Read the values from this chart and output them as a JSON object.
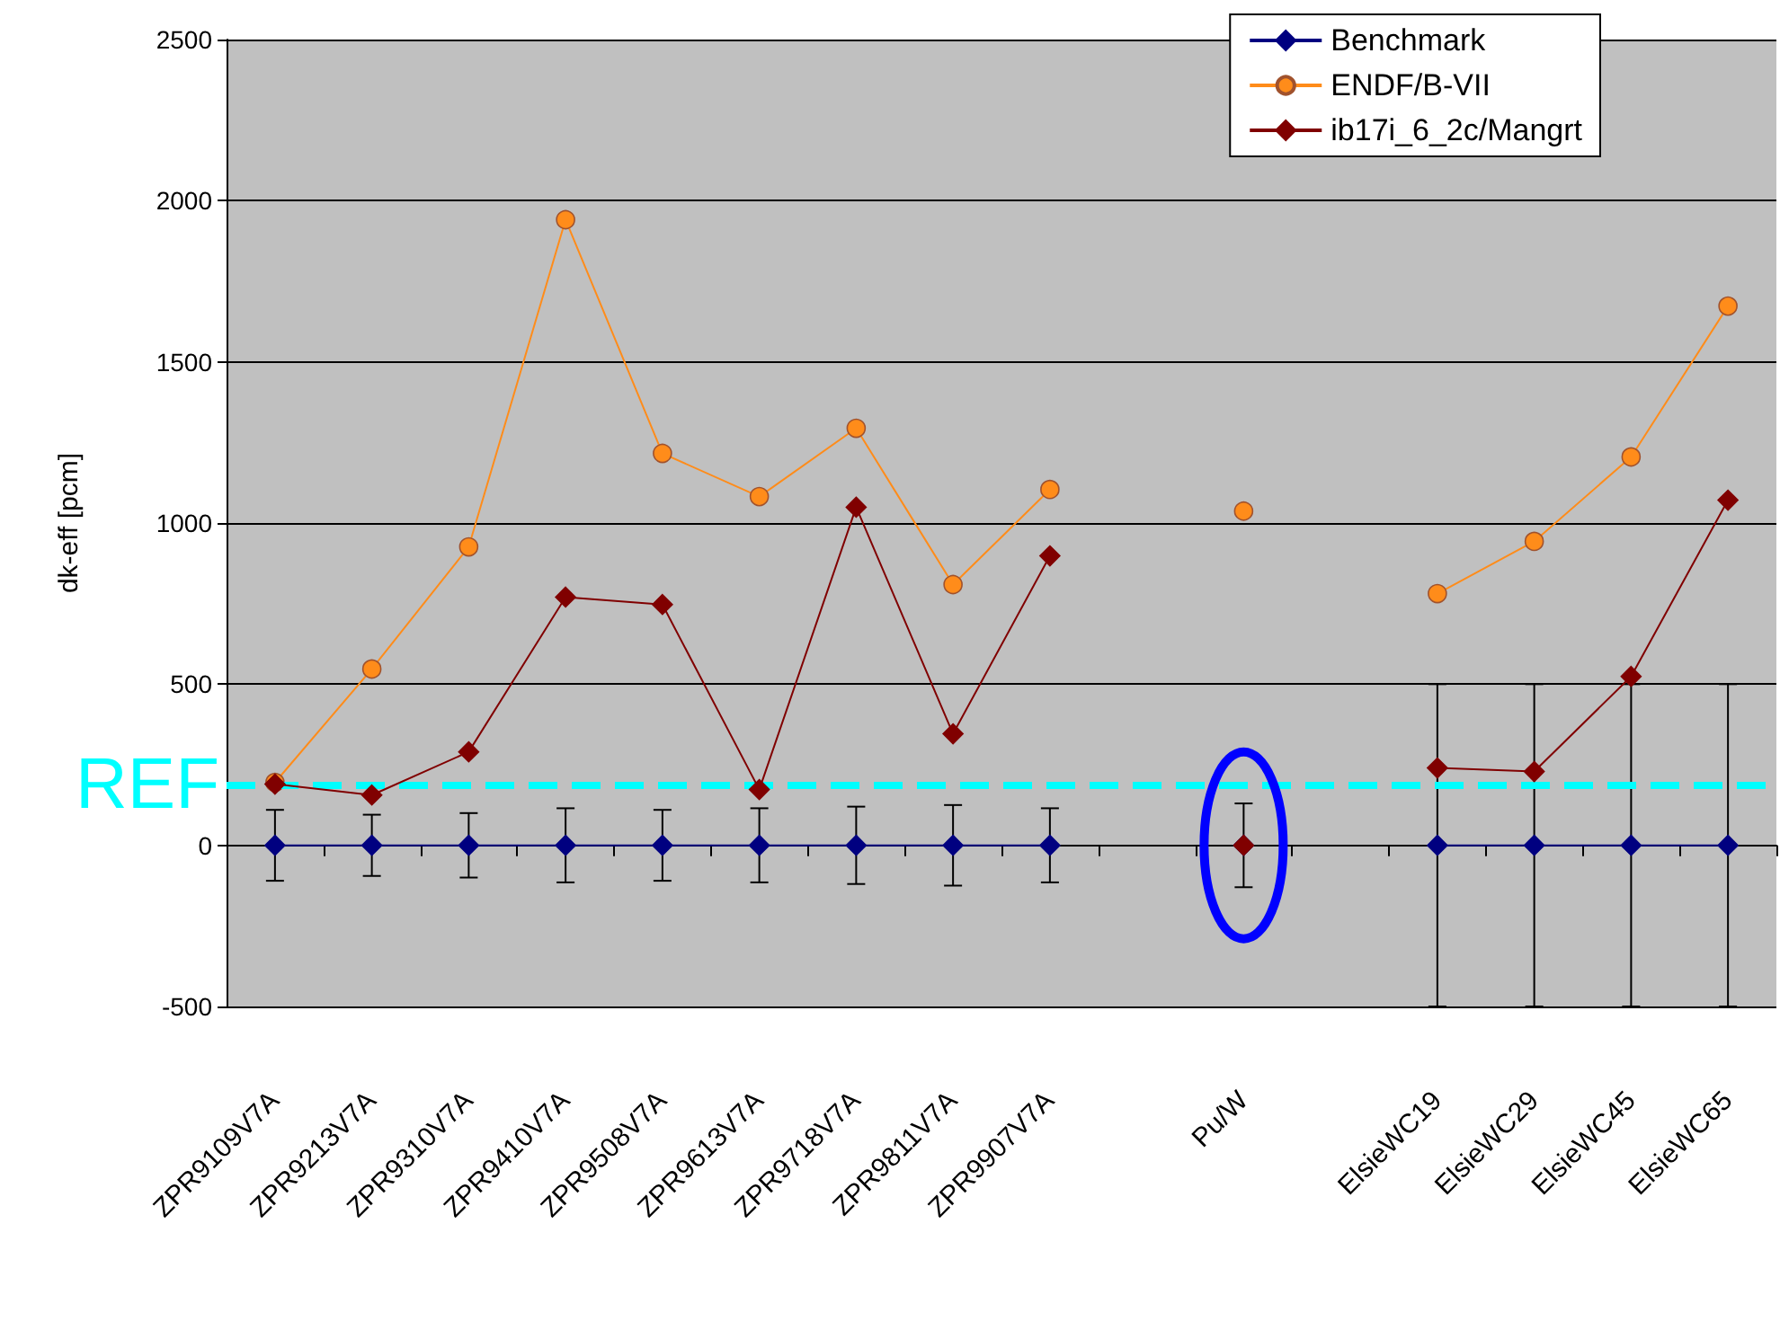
{
  "chart_data": {
    "type": "line",
    "ylabel": "dk-eff [pcm]",
    "categories": [
      "ZPR9109V7A",
      "ZPR9213V7A",
      "ZPR9310V7A",
      "ZPR9410V7A",
      "ZPR9508V7A",
      "ZPR9613V7A",
      "ZPR9718V7A",
      "ZPR9811V7A",
      "ZPR9907V7A",
      null,
      "Pu/W",
      null,
      "ElsieWC19",
      "ElsieWC29",
      "ElsieWC45",
      "ElsieWC65"
    ],
    "series": [
      {
        "name": "Benchmark",
        "color": "#000080",
        "marker": "diamond",
        "values": [
          0,
          0,
          0,
          0,
          0,
          0,
          0,
          0,
          0,
          null,
          0,
          null,
          0,
          0,
          0,
          0
        ],
        "errors": [
          110,
          95,
          100,
          115,
          110,
          115,
          120,
          125,
          115,
          null,
          130,
          null,
          500,
          500,
          500,
          500
        ]
      },
      {
        "name": "ENDF/B-VII",
        "color": "#ff8c1a",
        "marker": "circle",
        "values": [
          195,
          547,
          926,
          1941,
          1216,
          1082,
          1294,
          809,
          1104,
          null,
          1037,
          null,
          781,
          943,
          1205,
          1673
        ]
      },
      {
        "name": "ib17i_6_2c/Mangrt",
        "color": "#800000",
        "marker": "diamond",
        "values": [
          190,
          156,
          290,
          770,
          747,
          173,
          1049,
          346,
          898,
          null,
          0,
          null,
          240,
          229,
          524,
          1071
        ]
      }
    ],
    "ylim": [
      -500,
      2500
    ],
    "yticks": [
      -500,
      0,
      500,
      1000,
      1500,
      2000,
      2500
    ],
    "grid": "y",
    "legend": "top right",
    "ref_lines": [
      {
        "axis": "y",
        "value": 190,
        "label": "REF",
        "color": "#00ffff",
        "line_style": "dashed"
      }
    ]
  }
}
